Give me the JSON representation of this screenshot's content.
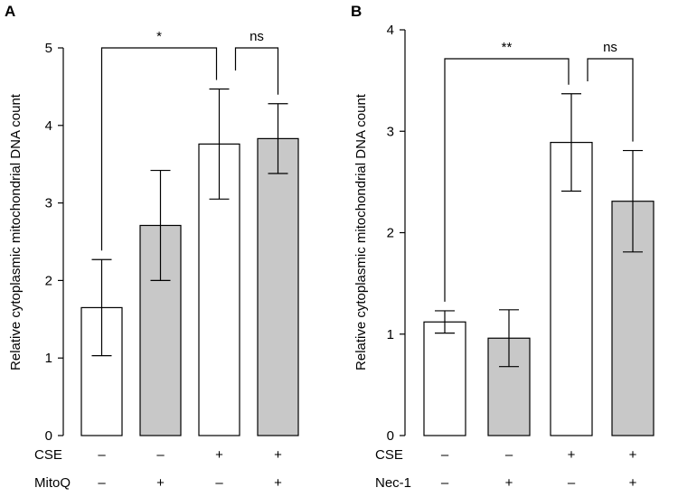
{
  "chart_data": [
    {
      "panel": "A",
      "type": "bar",
      "ylabel": "Relative cytoplasmic mitochondrial DNA count",
      "ylim": [
        0,
        5
      ],
      "yticks": [
        "0",
        "1",
        "2",
        "3",
        "4",
        "5"
      ],
      "values": [
        1.65,
        2.71,
        3.76,
        3.83
      ],
      "errors": [
        0.62,
        0.71,
        0.71,
        0.45
      ],
      "fill_colors": [
        "#ffffff",
        "#c8c8c8",
        "#ffffff",
        "#c8c8c8"
      ],
      "conditions": [
        {
          "name": "CSE",
          "signs": [
            "–",
            "–",
            "+",
            "+"
          ]
        },
        {
          "name": "MitoQ",
          "signs": [
            "–",
            "+",
            "–",
            "+"
          ]
        }
      ],
      "significance": [
        {
          "from": 0,
          "to": 2,
          "label": "*"
        },
        {
          "from": 2,
          "to": 3,
          "label": "ns"
        }
      ]
    },
    {
      "panel": "B",
      "type": "bar",
      "ylabel": "Relative cytoplasmic mitochondrial DNA count",
      "ylim": [
        0,
        4
      ],
      "yticks": [
        "0",
        "1",
        "2",
        "3",
        "4"
      ],
      "values": [
        1.12,
        0.96,
        2.89,
        2.31
      ],
      "errors": [
        0.11,
        0.28,
        0.48,
        0.5
      ],
      "fill_colors": [
        "#ffffff",
        "#c8c8c8",
        "#ffffff",
        "#c8c8c8"
      ],
      "conditions": [
        {
          "name": "CSE",
          "signs": [
            "–",
            "–",
            "+",
            "+"
          ]
        },
        {
          "name": "Nec-1",
          "signs": [
            "–",
            "+",
            "–",
            "+"
          ]
        }
      ],
      "significance": [
        {
          "from": 0,
          "to": 2,
          "label": "**"
        },
        {
          "from": 2,
          "to": 3,
          "label": "ns"
        }
      ]
    }
  ]
}
